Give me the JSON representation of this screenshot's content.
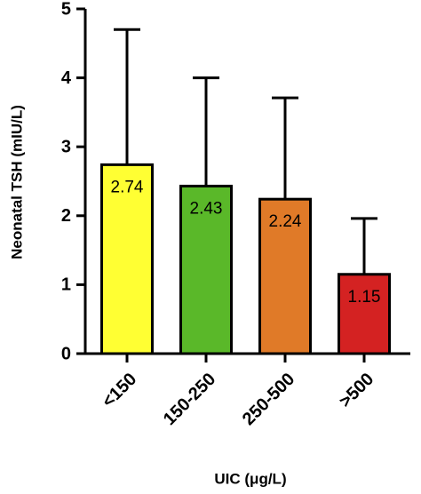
{
  "chart_data": {
    "type": "bar",
    "ylabel": "Neonatal TSH (mIU/L)",
    "xlabel": "UIC (μg/L)",
    "categories": [
      "<150",
      "150-250",
      "250-500",
      ">500"
    ],
    "values": [
      2.74,
      2.43,
      2.24,
      1.15
    ],
    "errors": [
      1.96,
      1.57,
      1.47,
      0.81
    ],
    "colors": [
      "#ffff33",
      "#5ab829",
      "#e07a28",
      "#d42222"
    ],
    "ylim": [
      0,
      5
    ],
    "yticks": [
      0,
      1,
      2,
      3,
      4,
      5
    ]
  }
}
